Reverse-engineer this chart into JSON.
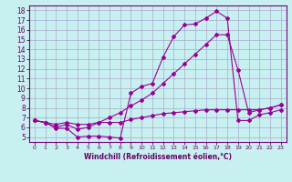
{
  "background_color": "#c8f0f0",
  "grid_color": "#aaaacc",
  "line_color": "#990099",
  "xlim": [
    -0.5,
    23.5
  ],
  "ylim": [
    4.5,
    18.5
  ],
  "xticks": [
    0,
    1,
    2,
    3,
    4,
    5,
    6,
    7,
    8,
    9,
    10,
    11,
    12,
    13,
    14,
    15,
    16,
    17,
    18,
    19,
    20,
    21,
    22,
    23
  ],
  "yticks": [
    5,
    6,
    7,
    8,
    9,
    10,
    11,
    12,
    13,
    14,
    15,
    16,
    17,
    18
  ],
  "xlabel": "Windchill (Refroidissement éolien,°C)",
  "line1_x": [
    0,
    1,
    2,
    3,
    4,
    5,
    6,
    7,
    8,
    9,
    10,
    11,
    12,
    13,
    14,
    15,
    16,
    17,
    18,
    19,
    20,
    21,
    22,
    23
  ],
  "line1_y": [
    6.7,
    6.5,
    5.9,
    5.9,
    5.0,
    5.1,
    5.1,
    5.0,
    4.9,
    9.5,
    10.2,
    10.5,
    13.2,
    15.3,
    16.5,
    16.6,
    17.2,
    17.9,
    17.2,
    6.7,
    6.7,
    7.3,
    7.5,
    7.8
  ],
  "line2_x": [
    0,
    1,
    2,
    3,
    4,
    5,
    6,
    7,
    8,
    9,
    10,
    11,
    12,
    13,
    14,
    15,
    16,
    17,
    18,
    19,
    20,
    21,
    22,
    23
  ],
  "line2_y": [
    6.7,
    6.5,
    6.0,
    6.3,
    5.8,
    6.0,
    6.5,
    7.0,
    7.5,
    8.2,
    8.8,
    9.5,
    10.5,
    11.5,
    12.5,
    13.5,
    14.5,
    15.5,
    15.5,
    11.9,
    7.5,
    7.8,
    8.0,
    8.3
  ],
  "line3_x": [
    0,
    1,
    2,
    3,
    4,
    5,
    6,
    7,
    8,
    9,
    10,
    11,
    12,
    13,
    14,
    15,
    16,
    17,
    18,
    19,
    20,
    21,
    22,
    23
  ],
  "line3_y": [
    6.7,
    6.5,
    6.3,
    6.5,
    6.3,
    6.3,
    6.5,
    6.5,
    6.5,
    6.8,
    7.0,
    7.2,
    7.4,
    7.5,
    7.6,
    7.7,
    7.8,
    7.8,
    7.8,
    7.8,
    7.8,
    7.8,
    8.0,
    8.3
  ]
}
